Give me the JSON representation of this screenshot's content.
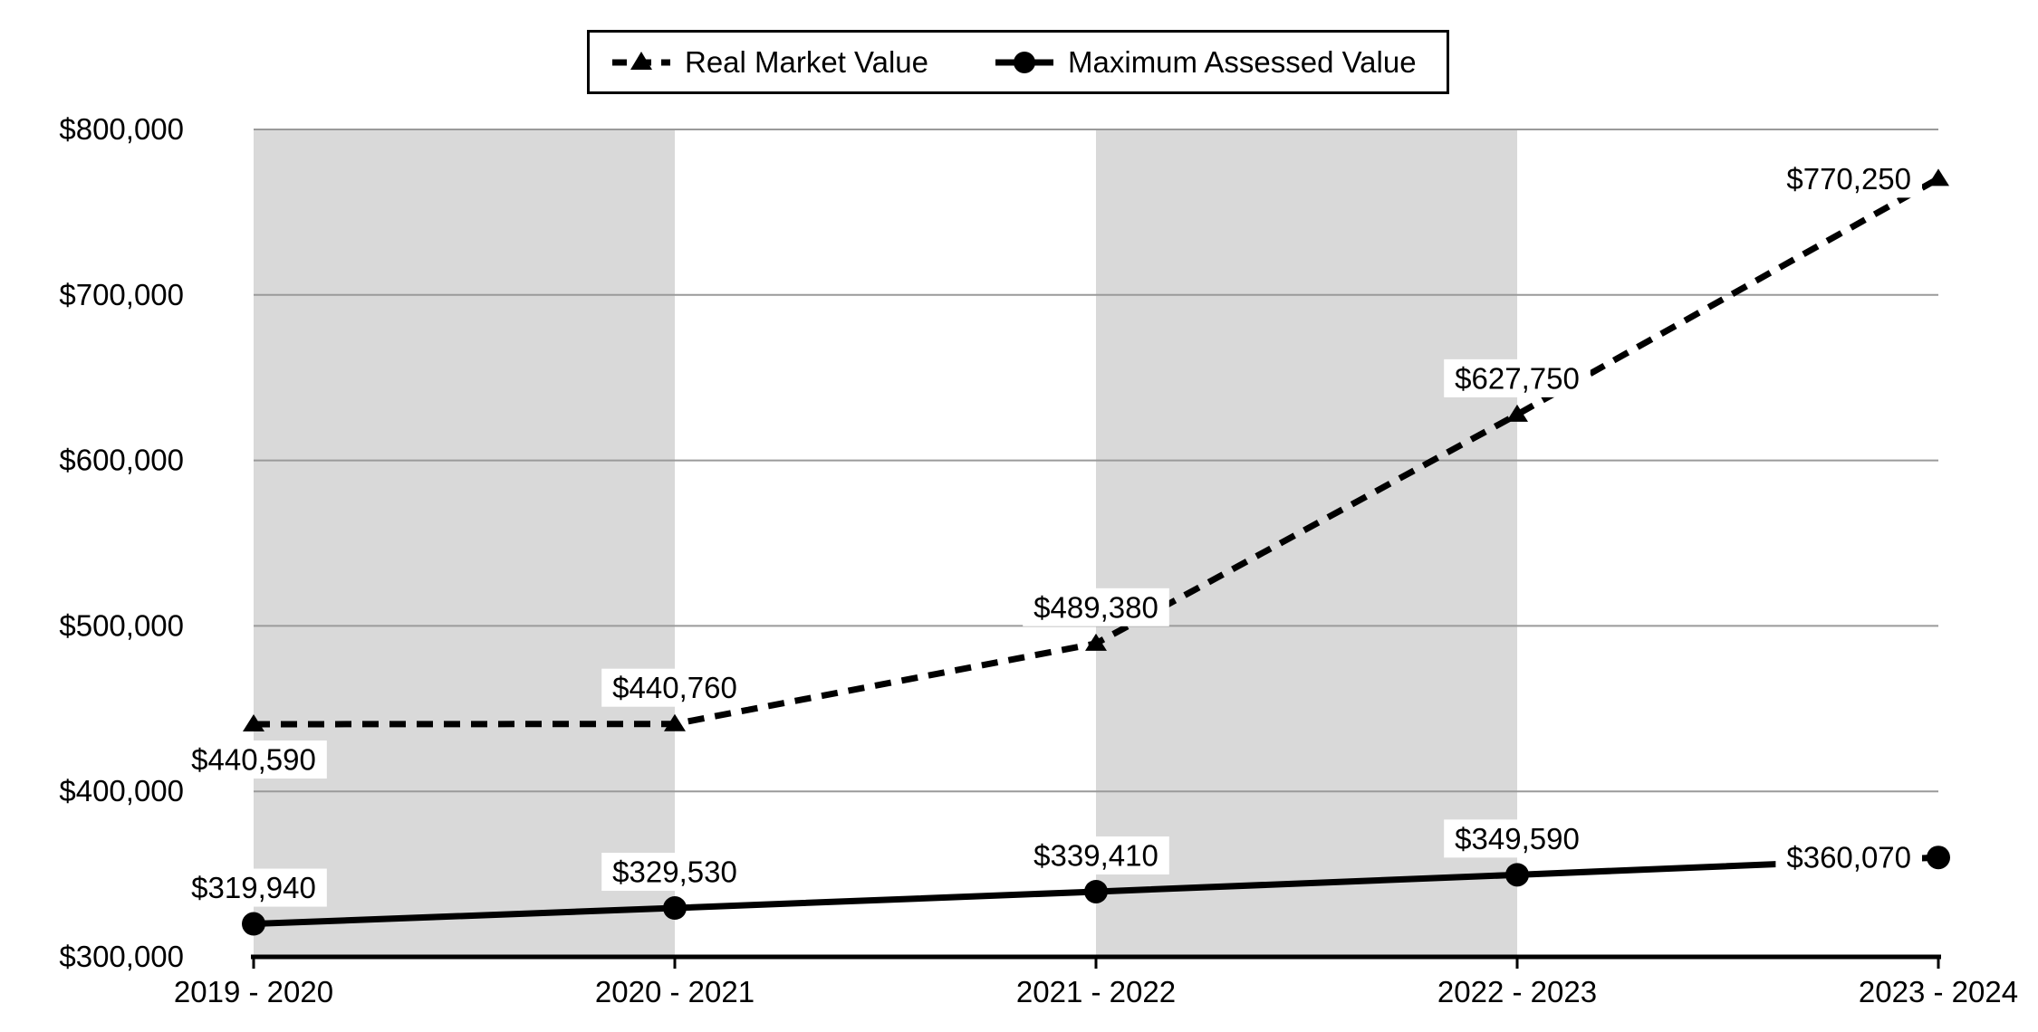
{
  "legend": {
    "items": [
      {
        "label": "Real Market Value",
        "line_style": "dashed",
        "marker": "triangle"
      },
      {
        "label": "Maximum Assessed Value",
        "line_style": "solid",
        "marker": "circle"
      }
    ]
  },
  "chart_data": {
    "type": "line",
    "categories": [
      "2019 - 2020",
      "2020 - 2021",
      "2021 - 2022",
      "2022 - 2023",
      "2023 - 2024"
    ],
    "series": [
      {
        "name": "Real Market Value",
        "line_style": "dashed",
        "marker": "triangle",
        "values": [
          440590,
          440760,
          489380,
          627750,
          770250
        ],
        "data_labels": [
          "$440,590",
          "$440,760",
          "$489,380",
          "$627,750",
          "$770,250"
        ],
        "label_positions": [
          "below",
          "above",
          "above",
          "above",
          "left"
        ]
      },
      {
        "name": "Maximum Assessed Value",
        "line_style": "solid",
        "marker": "circle",
        "values": [
          319940,
          329530,
          339410,
          349590,
          360070
        ],
        "data_labels": [
          "$319,940",
          "$329,530",
          "$339,410",
          "$349,590",
          "$360,070"
        ],
        "label_positions": [
          "above",
          "above",
          "above",
          "above",
          "left"
        ]
      }
    ],
    "y_axis": {
      "min": 300000,
      "max": 800000,
      "step": 100000,
      "tick_labels": [
        "$300,000",
        "$400,000",
        "$500,000",
        "$600,000",
        "$700,000",
        "$800,000"
      ]
    },
    "background_bands": {
      "color": "#d9d9d9",
      "between_category_indices": [
        [
          0,
          1
        ],
        [
          2,
          3
        ]
      ]
    },
    "colors": {
      "series": "#000000",
      "gridline": "#9a9a9a",
      "axis": "#000000",
      "label_background": "#ffffff",
      "text": "#000000"
    },
    "legend_position": "top",
    "grid": "horizontal"
  }
}
